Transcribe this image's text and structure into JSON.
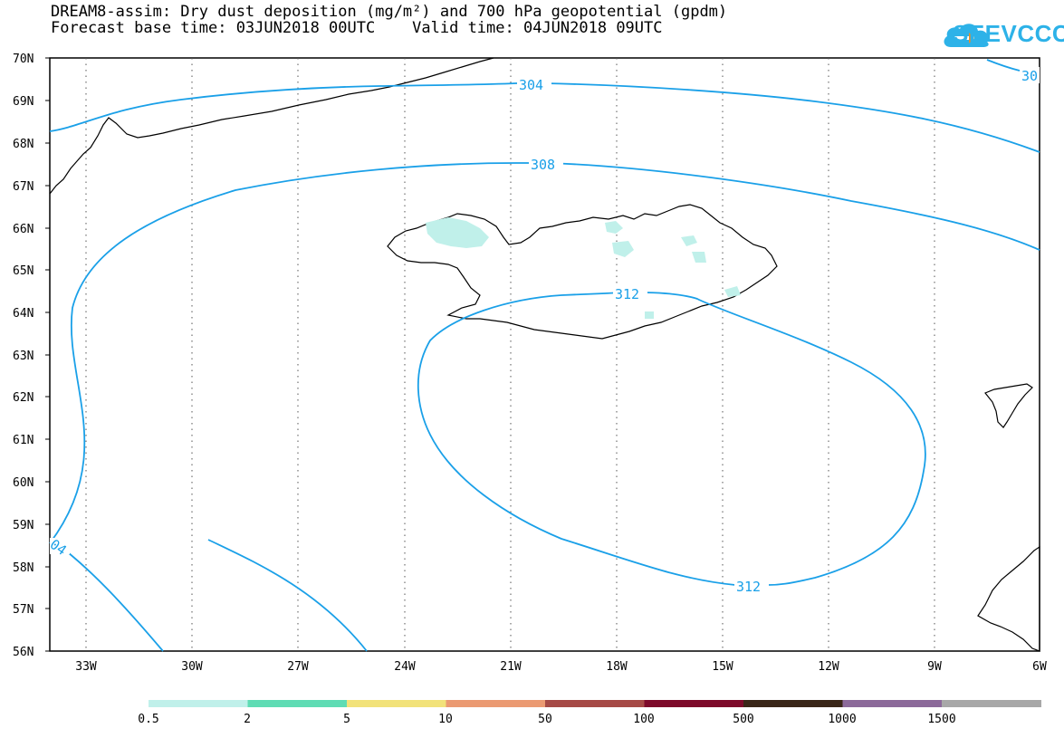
{
  "header": {
    "title_line1": "DREAM8-assim: Dry dust deposition (mg/m²) and 700 hPa geopotential (gpdm)",
    "title_line2": "Forecast base time: 03JUN2018 00UTC    Valid time: 04JUN2018 09UTC",
    "logo_text": "SEEVCCC",
    "logo_icon": "cloud-icon"
  },
  "map": {
    "lat_labels": [
      "70N",
      "69N",
      "68N",
      "67N",
      "66N",
      "65N",
      "64N",
      "63N",
      "62N",
      "61N",
      "60N",
      "59N",
      "58N",
      "57N",
      "56N"
    ],
    "lon_labels": [
      "33W",
      "30W",
      "27W",
      "24W",
      "21W",
      "18W",
      "15W",
      "12W",
      "9W",
      "6W"
    ],
    "contour_labels": [
      "304",
      "308",
      "312",
      "312",
      "30",
      "04"
    ],
    "contour_color": "#1aa0e8",
    "grid": "dotted"
  },
  "colorbar": {
    "labels": [
      "0.5",
      "2",
      "5",
      "10",
      "50",
      "100",
      "500",
      "1000",
      "1500"
    ],
    "colors": [
      "#c0f0ea",
      "#5fdcb4",
      "#f2e27a",
      "#eb9a72",
      "#a64a46",
      "#7d0a2a",
      "#3a2618",
      "#8c6a9a",
      "#a8a8a8"
    ]
  }
}
